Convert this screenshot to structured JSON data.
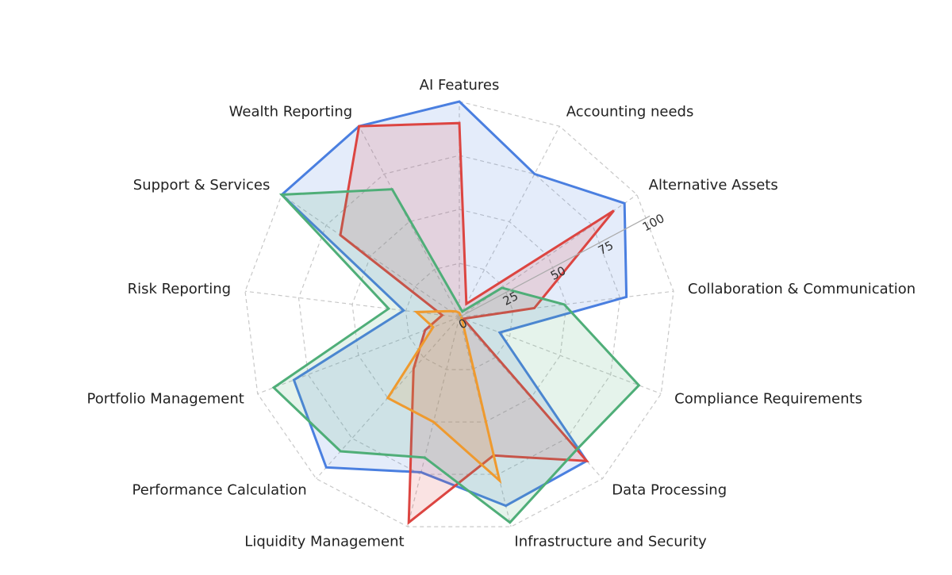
{
  "chart_data": {
    "type": "radar",
    "categories": [
      "AI Features",
      "Accounting needs",
      "Alternative Assets",
      "Collaboration & Communication",
      "Compliance Requirements",
      "Data Processing",
      "Infrastructure and Security",
      "Liquidity Management",
      "Performance Calculation",
      "Portfolio Management",
      "Risk Reporting",
      "Support & Services",
      "Wealth Reporting"
    ],
    "series": [
      {
        "color": "#4a7fe0",
        "values": [
          100,
          75,
          93,
          78,
          20,
          89,
          90,
          74,
          93,
          82,
          26,
          100,
          100
        ]
      },
      {
        "color": "#dc4541",
        "values": [
          90,
          7,
          87,
          35,
          2,
          89,
          66,
          98,
          32,
          17,
          8,
          67,
          100
        ]
      },
      {
        "color": "#4fae78",
        "values": [
          5,
          3,
          24,
          49,
          89,
          82,
          98,
          67,
          83,
          92,
          33,
          100,
          67
        ]
      },
      {
        "color": "#ef9a2e",
        "values": [
          2,
          1,
          1,
          1,
          1,
          2,
          78,
          50,
          50,
          13,
          20,
          5,
          3
        ]
      }
    ],
    "rlim": [
      0,
      100
    ],
    "rticks": [
      0,
      25,
      50,
      75,
      100
    ],
    "grid": true
  }
}
